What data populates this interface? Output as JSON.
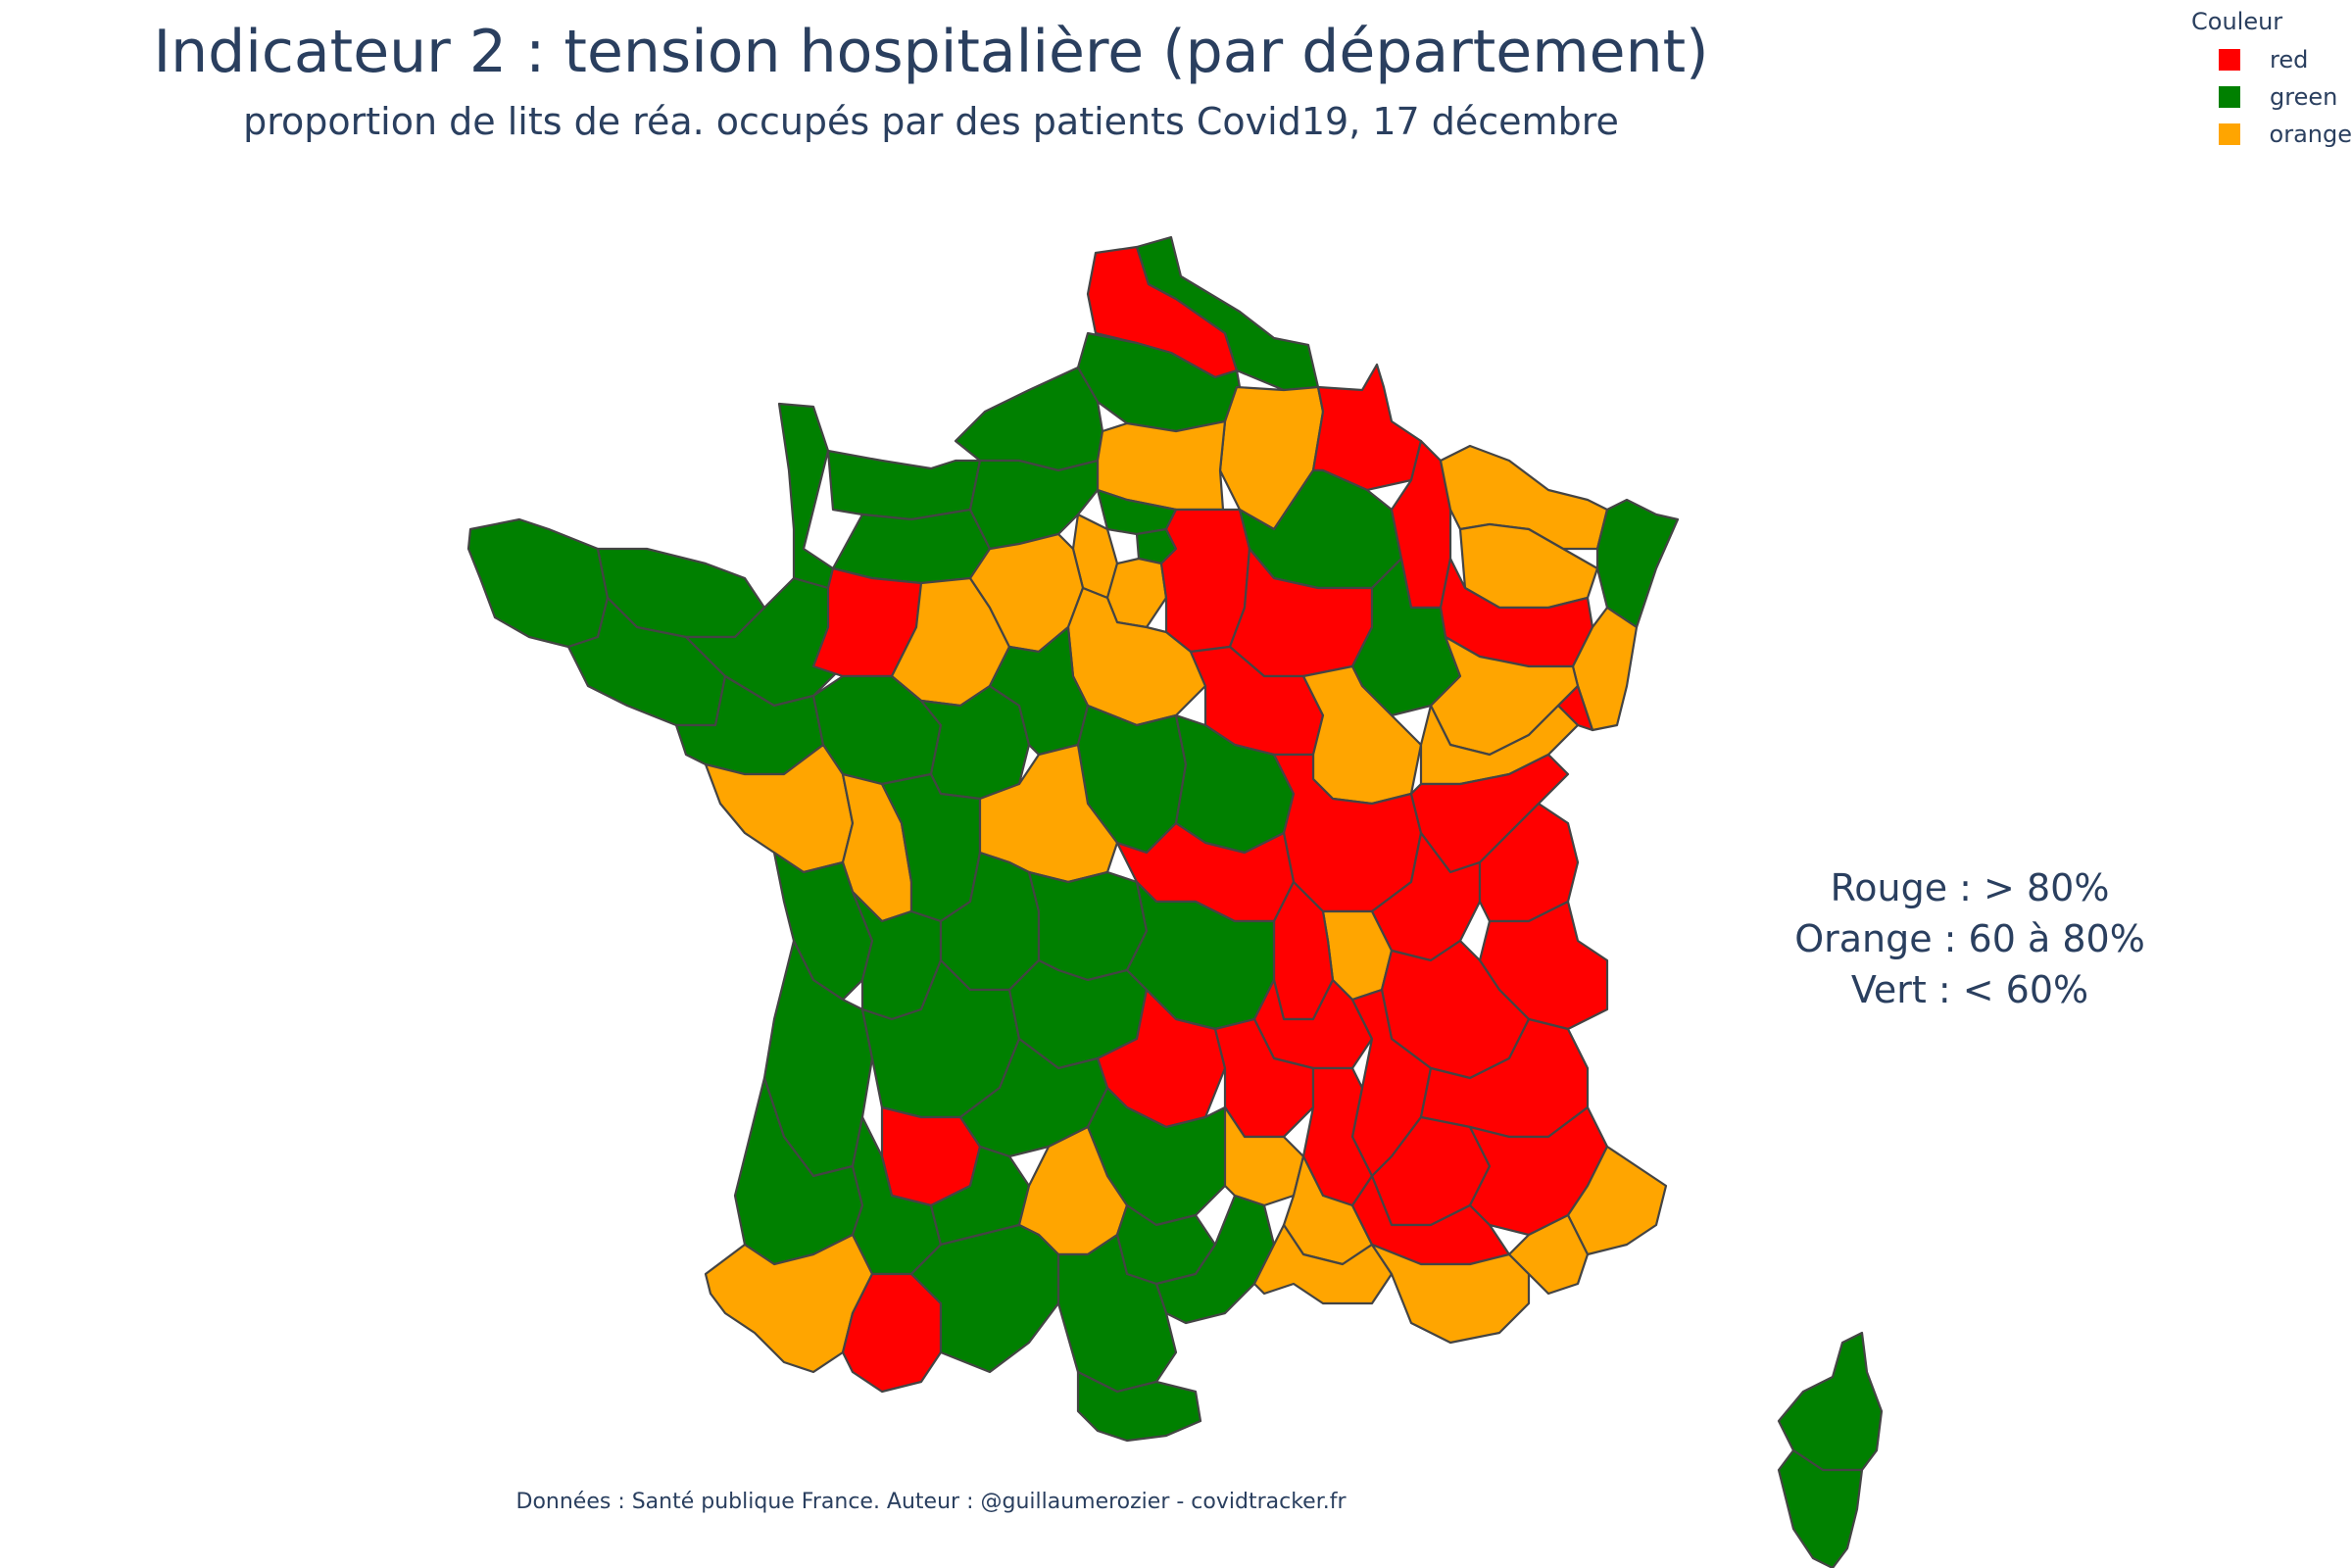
{
  "title": "Indicateur 2 : tension hospitalière (par département)",
  "subtitle": "proportion de lits de réa. occupés par des patients Covid19, 17 décembre",
  "legend": {
    "title": "Couleur",
    "items": [
      {
        "label": "red",
        "color": "#ff0000"
      },
      {
        "label": "green",
        "color": "#008000"
      },
      {
        "label": "orange",
        "color": "#ffa500"
      }
    ]
  },
  "scale": {
    "line1": "Rouge : > 80%",
    "line2": "Orange : 60 à 80%",
    "line3": "Vert : < 60%"
  },
  "source": "Données : Santé publique France. Auteur : @guillaumerozier - covidtracker.fr",
  "colors": {
    "red": "#ff0000",
    "green": "#008000",
    "orange": "#ffa500",
    "border": "#444444"
  }
}
